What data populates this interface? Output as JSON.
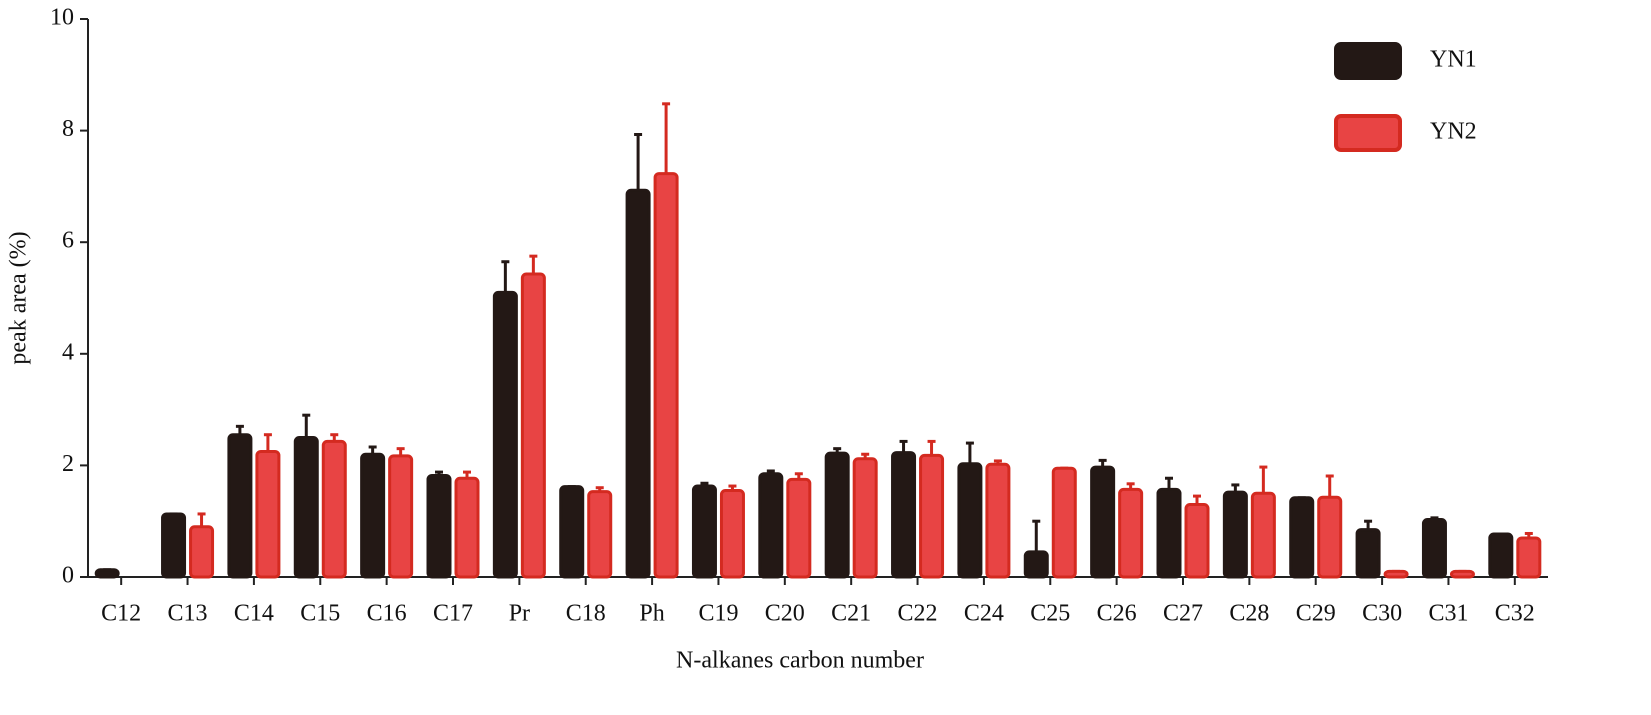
{
  "chart_data": {
    "type": "bar",
    "x_label": "N-alkanes carbon number",
    "y_label": "peak area (%)",
    "categories": [
      "C12",
      "C13",
      "C14",
      "C15",
      "C16",
      "C17",
      "Pr",
      "C18",
      "Ph",
      "C19",
      "C20",
      "C21",
      "C22",
      "C24",
      "C25",
      "C26",
      "C27",
      "C28",
      "C29",
      "C30",
      "C31",
      "C32"
    ],
    "series": [
      {
        "name": "YN1",
        "color": "#231815",
        "stroke": "#231815",
        "values": [
          0.13,
          1.13,
          2.55,
          2.5,
          2.2,
          1.82,
          5.1,
          1.62,
          6.93,
          1.63,
          1.85,
          2.22,
          2.23,
          2.03,
          0.45,
          1.97,
          1.57,
          1.52,
          1.42,
          0.85,
          1.03,
          0.77
        ],
        "errors": [
          0,
          0,
          0.15,
          0.4,
          0.13,
          0.06,
          0.55,
          0,
          1.0,
          0.05,
          0.05,
          0.08,
          0.2,
          0.37,
          0.55,
          0.12,
          0.2,
          0.13,
          0,
          0.15,
          0.03,
          0
        ]
      },
      {
        "name": "YN2",
        "color": "#e84444",
        "stroke": "#d42a20",
        "values": [
          null,
          0.9,
          2.25,
          2.43,
          2.17,
          1.77,
          5.43,
          1.53,
          7.23,
          1.55,
          1.75,
          2.12,
          2.18,
          2.02,
          1.95,
          1.57,
          1.3,
          1.5,
          1.43,
          0.1,
          0.1,
          0.7
        ],
        "errors": [
          null,
          0.23,
          0.3,
          0.12,
          0.13,
          0.11,
          0.32,
          0.07,
          1.25,
          0.08,
          0.1,
          0.08,
          0.25,
          0.06,
          0,
          0.1,
          0.15,
          0.47,
          0.38,
          0,
          0,
          0.08
        ]
      }
    ],
    "ylim": [
      0,
      10
    ],
    "yticks": [
      0,
      2,
      4,
      6,
      8,
      10
    ],
    "legend": "top-right"
  }
}
